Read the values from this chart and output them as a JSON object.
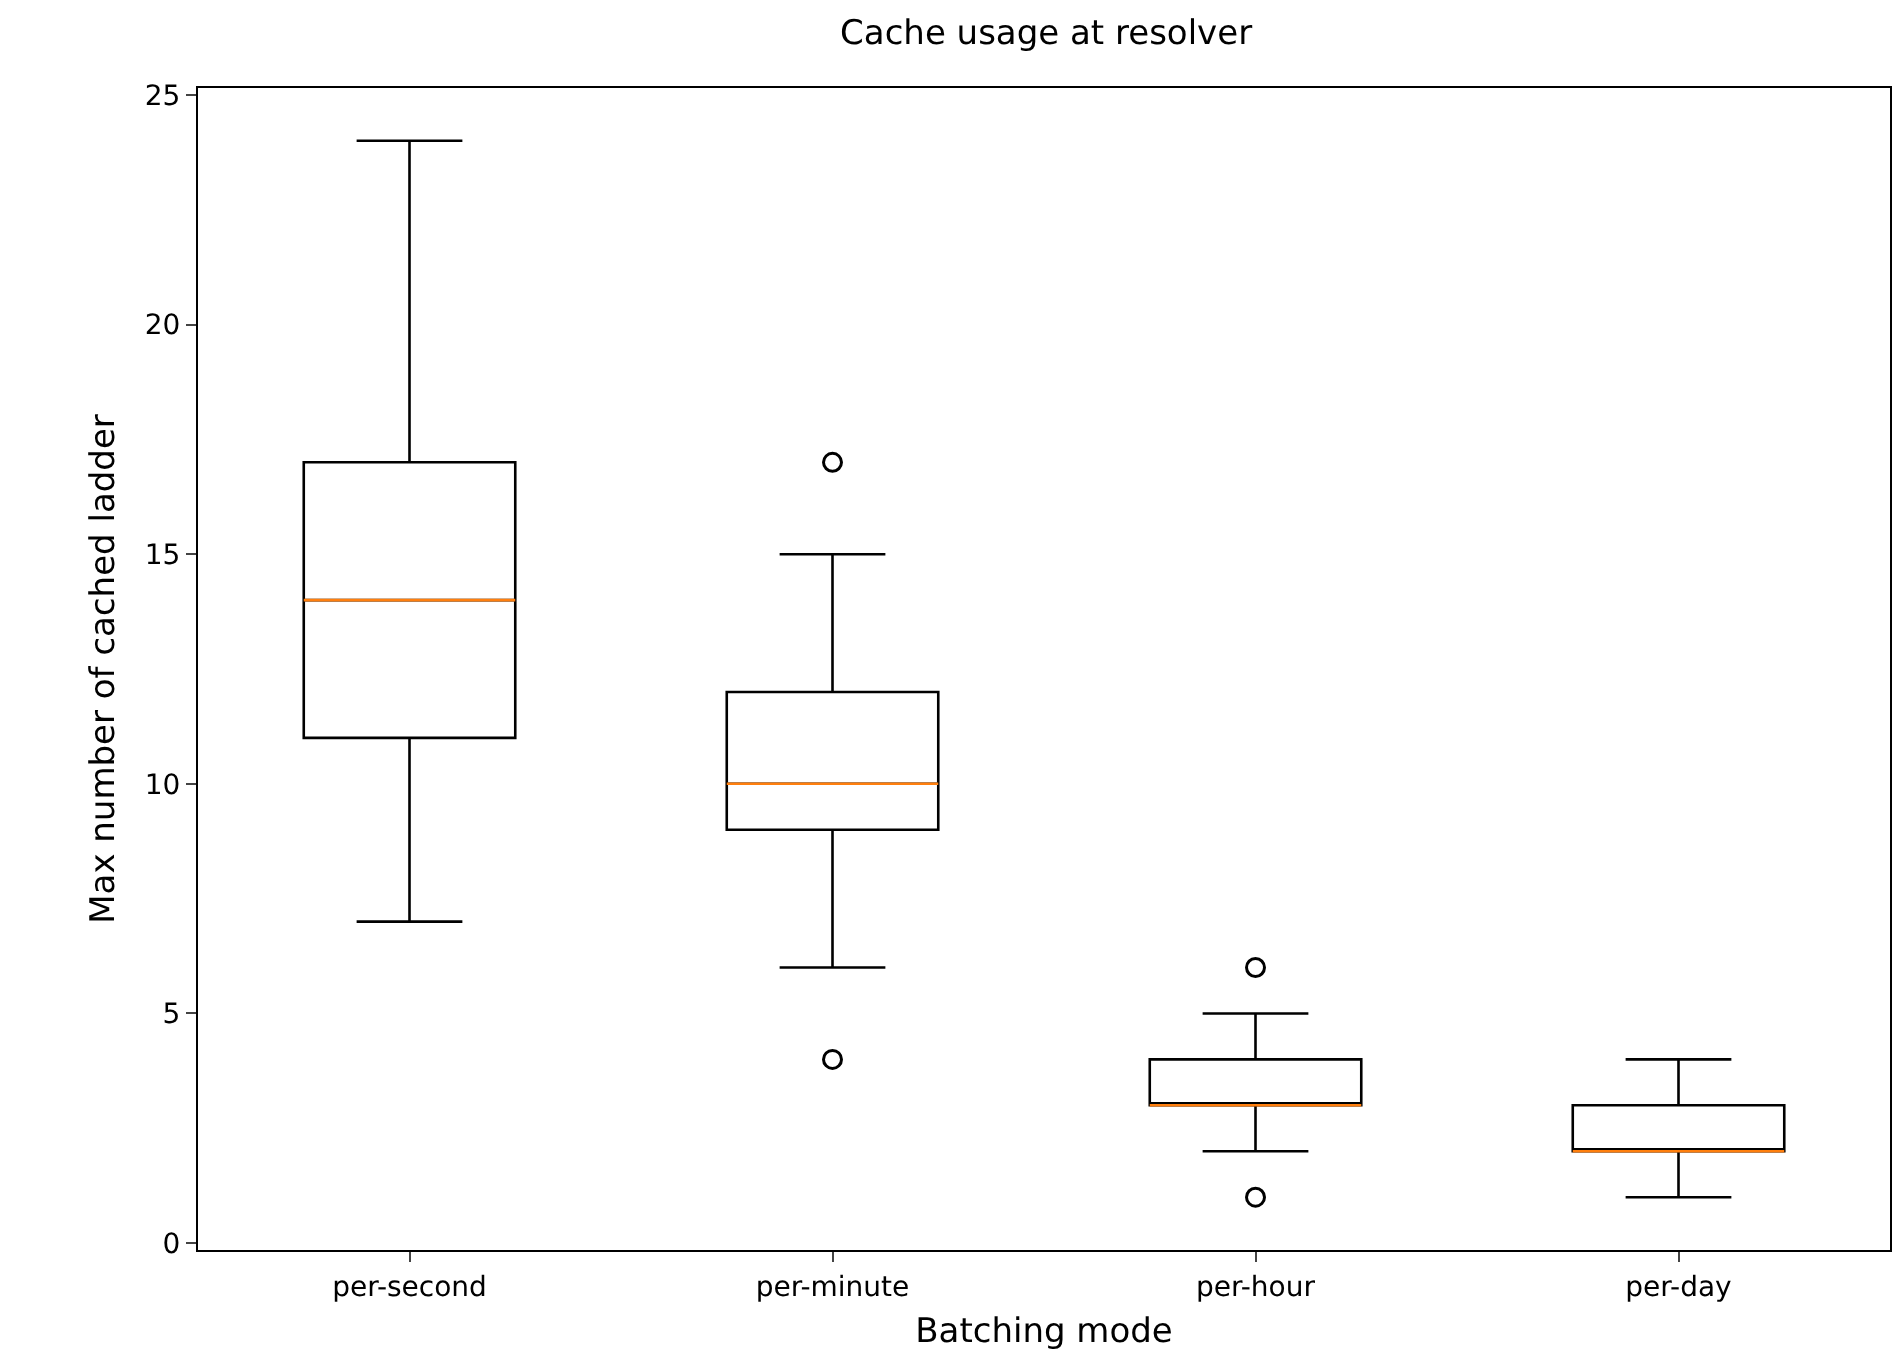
{
  "chart_data": {
    "type": "box",
    "title": "Cache usage at resolver",
    "xlabel": "Batching mode",
    "ylabel": "Max number of cached ladder",
    "categories": [
      "per-second",
      "per-minute",
      "per-hour",
      "per-day"
    ],
    "color": "#000000",
    "boxes": [
      {
        "low": 7,
        "q1": 11,
        "median": 14,
        "q3": 17,
        "high": 24
      },
      {
        "low": 6,
        "q1": 9,
        "median": 10,
        "q3": 12,
        "high": 15,
        "outliers": [
          4,
          17
        ]
      },
      {
        "low": 2,
        "q1": 3,
        "median": 3,
        "q3": 4,
        "high": 5,
        "outliers": [
          1,
          6
        ]
      },
      {
        "low": 1,
        "q1": 2,
        "median": 2,
        "q3": 3,
        "high": 4
      }
    ],
    "ylim": [
      -0.15,
      25.15
    ],
    "yticks": [
      0,
      5,
      10,
      15,
      20,
      25
    ],
    "grid": false
  }
}
